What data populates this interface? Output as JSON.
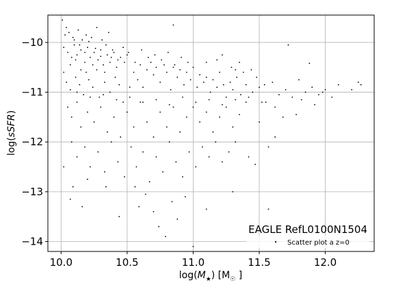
{
  "chart_data": {
    "type": "scatter",
    "xlabel_parts": [
      "log(",
      "M",
      "★",
      ") [M",
      "☉",
      " ]"
    ],
    "ylabel_parts": [
      "log(",
      "sSFR",
      ")"
    ],
    "xlim": [
      9.9,
      12.37
    ],
    "ylim": [
      -14.2,
      -9.45
    ],
    "xticks": [
      10.0,
      10.5,
      11.0,
      11.5,
      12.0
    ],
    "xtick_labels": [
      "10.0",
      "10.5",
      "11.0",
      "11.5",
      "12.0"
    ],
    "yticks": [
      -14,
      -13,
      -12,
      -11,
      -10
    ],
    "ytick_labels": [
      "−14",
      "−13",
      "−12",
      "−11",
      "−10"
    ],
    "grid": true,
    "annotation": "EAGLE RefL0100N1504",
    "legend": {
      "position": "lower-right",
      "entries": [
        "Scatter plot a z=0"
      ]
    },
    "series": [
      {
        "name": "Scatter plot a z=0",
        "color": "#000000",
        "points": [
          [
            10.02,
            -10.1
          ],
          [
            10.05,
            -10.2
          ],
          [
            10.08,
            -10.3
          ],
          [
            10.1,
            -10.05
          ],
          [
            10.12,
            -10.25
          ],
          [
            10.15,
            -10.15
          ],
          [
            10.18,
            -10.4
          ],
          [
            10.2,
            -10.1
          ],
          [
            10.22,
            -10.3
          ],
          [
            10.25,
            -10.2
          ],
          [
            10.28,
            -10.35
          ],
          [
            10.3,
            -10.15
          ],
          [
            10.32,
            -10.45
          ],
          [
            10.35,
            -10.25
          ],
          [
            10.38,
            -10.3
          ],
          [
            10.4,
            -10.2
          ],
          [
            10.42,
            -10.5
          ],
          [
            10.45,
            -10.3
          ],
          [
            10.48,
            -10.4
          ],
          [
            10.5,
            -10.25
          ],
          [
            10.03,
            -9.85
          ],
          [
            10.06,
            -9.8
          ],
          [
            10.09,
            -9.9
          ],
          [
            10.13,
            -9.75
          ],
          [
            10.16,
            -9.95
          ],
          [
            10.19,
            -9.85
          ],
          [
            10.23,
            -9.9
          ],
          [
            10.27,
            -9.7
          ],
          [
            10.31,
            -9.95
          ],
          [
            10.36,
            -9.8
          ],
          [
            10.02,
            -10.6
          ],
          [
            10.04,
            -10.8
          ],
          [
            10.07,
            -10.95
          ],
          [
            10.11,
            -10.7
          ],
          [
            10.14,
            -10.85
          ],
          [
            10.17,
            -11.05
          ],
          [
            10.21,
            -10.75
          ],
          [
            10.24,
            -10.9
          ],
          [
            10.29,
            -11.1
          ],
          [
            10.33,
            -10.8
          ],
          [
            10.37,
            -11.0
          ],
          [
            10.41,
            -10.7
          ],
          [
            10.44,
            -10.85
          ],
          [
            10.47,
            -11.2
          ],
          [
            10.52,
            -10.9
          ],
          [
            10.55,
            -10.6
          ],
          [
            10.58,
            -10.75
          ],
          [
            10.6,
            -10.45
          ],
          [
            10.62,
            -10.9
          ],
          [
            10.65,
            -10.55
          ],
          [
            10.68,
            -10.4
          ],
          [
            10.7,
            -10.65
          ],
          [
            10.72,
            -10.5
          ],
          [
            10.75,
            -10.8
          ],
          [
            10.78,
            -10.45
          ],
          [
            10.8,
            -10.6
          ],
          [
            10.83,
            -10.95
          ],
          [
            10.85,
            -10.5
          ],
          [
            10.88,
            -10.7
          ],
          [
            10.9,
            -10.55
          ],
          [
            10.93,
            -10.85
          ],
          [
            10.95,
            -10.6
          ],
          [
            10.98,
            -10.75
          ],
          [
            11.0,
            -10.5
          ],
          [
            11.03,
            -10.9
          ],
          [
            11.05,
            -10.65
          ],
          [
            11.08,
            -10.8
          ],
          [
            11.1,
            -10.7
          ],
          [
            11.13,
            -11.0
          ],
          [
            11.15,
            -10.75
          ],
          [
            11.18,
            -10.9
          ],
          [
            11.2,
            -10.6
          ],
          [
            11.23,
            -10.85
          ],
          [
            11.25,
            -11.1
          ],
          [
            11.28,
            -10.8
          ],
          [
            11.3,
            -10.95
          ],
          [
            11.33,
            -10.7
          ],
          [
            11.36,
            -11.05
          ],
          [
            11.4,
            -10.85
          ],
          [
            11.45,
            -11.0
          ],
          [
            11.5,
            -10.9
          ],
          [
            11.55,
            -11.2
          ],
          [
            11.6,
            -10.8
          ],
          [
            11.65,
            -11.05
          ],
          [
            11.7,
            -10.95
          ],
          [
            11.75,
            -11.1
          ],
          [
            11.8,
            -10.75
          ],
          [
            11.85,
            -11.0
          ],
          [
            11.9,
            -10.9
          ],
          [
            11.95,
            -11.05
          ],
          [
            12.0,
            -10.95
          ],
          [
            12.05,
            -11.1
          ],
          [
            12.1,
            -10.85
          ],
          [
            12.2,
            -10.95
          ],
          [
            12.25,
            -10.8
          ],
          [
            12.27,
            -10.85
          ],
          [
            11.72,
            -10.05
          ],
          [
            11.88,
            -10.42
          ],
          [
            11.98,
            -11.0
          ],
          [
            11.54,
            -10.85
          ],
          [
            10.05,
            -11.3
          ],
          [
            10.08,
            -11.5
          ],
          [
            10.12,
            -11.2
          ],
          [
            10.15,
            -11.7
          ],
          [
            10.2,
            -11.4
          ],
          [
            10.25,
            -11.6
          ],
          [
            10.3,
            -11.3
          ],
          [
            10.35,
            -11.8
          ],
          [
            10.4,
            -11.5
          ],
          [
            10.45,
            -11.9
          ],
          [
            10.5,
            -11.4
          ],
          [
            10.55,
            -11.7
          ],
          [
            10.6,
            -11.2
          ],
          [
            10.65,
            -11.6
          ],
          [
            10.7,
            -11.9
          ],
          [
            10.75,
            -11.4
          ],
          [
            10.8,
            -11.7
          ],
          [
            10.85,
            -11.3
          ],
          [
            10.9,
            -11.8
          ],
          [
            10.95,
            -11.5
          ],
          [
            11.0,
            -11.3
          ],
          [
            11.05,
            -11.6
          ],
          [
            11.1,
            -11.4
          ],
          [
            11.15,
            -11.8
          ],
          [
            11.2,
            -11.5
          ],
          [
            11.25,
            -11.3
          ],
          [
            11.3,
            -11.7
          ],
          [
            11.35,
            -11.45
          ],
          [
            11.4,
            -11.2
          ],
          [
            11.5,
            -11.6
          ],
          [
            10.08,
            -12.0
          ],
          [
            10.12,
            -12.3
          ],
          [
            10.18,
            -12.1
          ],
          [
            10.22,
            -12.5
          ],
          [
            10.28,
            -12.2
          ],
          [
            10.33,
            -12.6
          ],
          [
            10.38,
            -12.0
          ],
          [
            10.43,
            -12.4
          ],
          [
            10.48,
            -12.7
          ],
          [
            10.53,
            -12.1
          ],
          [
            10.57,
            -12.5
          ],
          [
            10.62,
            -12.2
          ],
          [
            10.67,
            -12.8
          ],
          [
            10.72,
            -12.3
          ],
          [
            10.77,
            -12.6
          ],
          [
            10.82,
            -12.0
          ],
          [
            10.87,
            -12.4
          ],
          [
            10.92,
            -12.7
          ],
          [
            10.97,
            -12.2
          ],
          [
            11.02,
            -12.5
          ],
          [
            11.07,
            -12.1
          ],
          [
            11.12,
            -12.3
          ],
          [
            11.17,
            -12.0
          ],
          [
            11.22,
            -12.4
          ],
          [
            11.27,
            -12.2
          ],
          [
            11.32,
            -12.0
          ],
          [
            11.42,
            -12.3
          ],
          [
            11.47,
            -12.45
          ],
          [
            11.62,
            -11.9
          ],
          [
            11.57,
            -12.1
          ],
          [
            10.02,
            -12.5
          ],
          [
            10.09,
            -12.9
          ],
          [
            10.2,
            -12.75
          ],
          [
            10.34,
            -12.9
          ],
          [
            10.44,
            -13.5
          ],
          [
            10.56,
            -12.9
          ],
          [
            10.64,
            -13.05
          ],
          [
            10.7,
            -13.4
          ],
          [
            10.74,
            -13.7
          ],
          [
            10.79,
            -13.9
          ],
          [
            10.84,
            -13.2
          ],
          [
            10.88,
            -13.55
          ],
          [
            10.94,
            -13.1
          ],
          [
            11.0,
            -14.1
          ],
          [
            11.1,
            -13.35
          ],
          [
            11.3,
            -13.0
          ],
          [
            11.57,
            -13.35
          ],
          [
            10.16,
            -13.3
          ],
          [
            10.07,
            -13.15
          ],
          [
            10.59,
            -13.3
          ],
          [
            10.1,
            -9.95
          ],
          [
            10.14,
            -10.05
          ],
          [
            10.18,
            -10.2
          ],
          [
            10.21,
            -9.98
          ],
          [
            10.26,
            -10.12
          ],
          [
            10.3,
            -10.28
          ],
          [
            10.34,
            -10.05
          ],
          [
            10.39,
            -10.15
          ],
          [
            10.43,
            -10.35
          ],
          [
            10.47,
            -10.1
          ],
          [
            10.51,
            -10.2
          ],
          [
            10.56,
            -10.4
          ],
          [
            10.61,
            -10.15
          ],
          [
            10.66,
            -10.3
          ],
          [
            10.71,
            -10.25
          ],
          [
            10.76,
            -10.35
          ],
          [
            10.81,
            -10.2
          ],
          [
            10.86,
            -10.45
          ],
          [
            10.91,
            -10.3
          ],
          [
            10.96,
            -10.4
          ],
          [
            10.01,
            -9.55
          ],
          [
            10.04,
            -9.7
          ],
          [
            10.07,
            -10.45
          ],
          [
            10.11,
            -10.35
          ],
          [
            10.15,
            -10.55
          ],
          [
            10.19,
            -10.6
          ],
          [
            10.24,
            -10.45
          ],
          [
            10.27,
            -10.55
          ],
          [
            10.33,
            -10.6
          ],
          [
            10.37,
            -10.4
          ],
          [
            10.85,
            -9.65
          ],
          [
            11.22,
            -10.25
          ],
          [
            11.35,
            -10.4
          ],
          [
            11.1,
            -10.4
          ],
          [
            11.18,
            -10.35
          ],
          [
            11.29,
            -10.5
          ],
          [
            11.32,
            -10.55
          ],
          [
            11.38,
            -10.6
          ],
          [
            11.44,
            -10.55
          ],
          [
            11.48,
            -10.7
          ],
          [
            10.12,
            -11.0
          ],
          [
            10.22,
            -11.1
          ],
          [
            10.32,
            -11.05
          ],
          [
            10.42,
            -11.15
          ],
          [
            10.52,
            -11.1
          ],
          [
            10.62,
            -11.2
          ],
          [
            10.72,
            -11.15
          ],
          [
            10.82,
            -11.25
          ],
          [
            10.92,
            -11.1
          ],
          [
            11.02,
            -11.2
          ],
          [
            11.12,
            -11.15
          ],
          [
            11.22,
            -11.25
          ],
          [
            11.32,
            -11.15
          ],
          [
            11.42,
            -11.1
          ],
          [
            11.52,
            -11.2
          ],
          [
            11.62,
            -11.3
          ],
          [
            11.68,
            -11.5
          ],
          [
            11.78,
            -11.45
          ],
          [
            11.82,
            -11.15
          ],
          [
            11.92,
            -11.25
          ]
        ]
      }
    ]
  }
}
